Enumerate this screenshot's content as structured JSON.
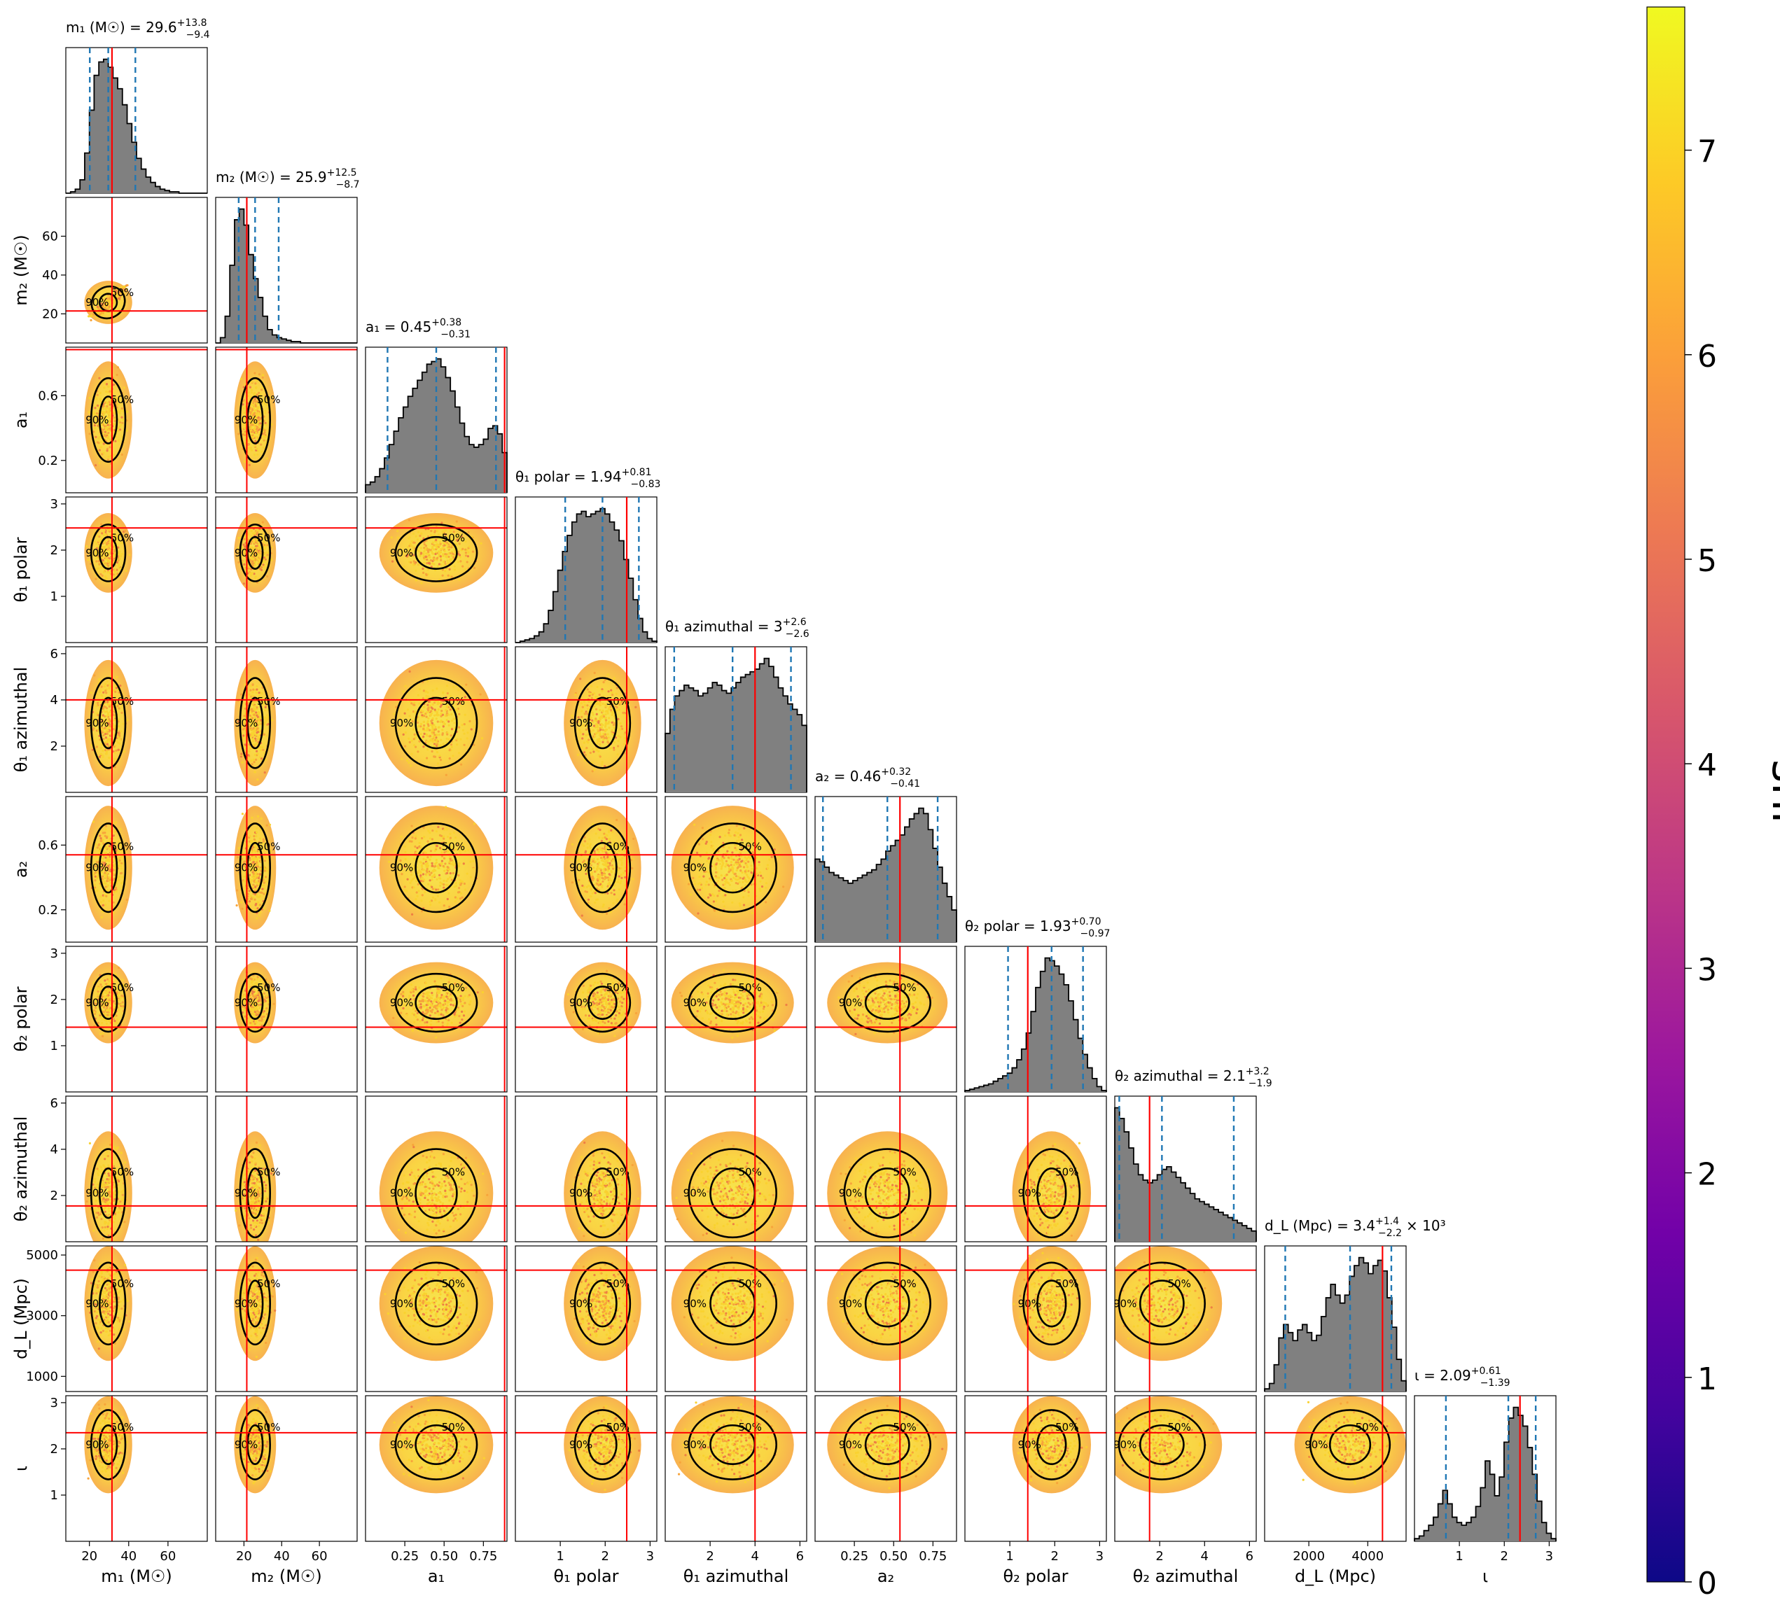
{
  "colors": {
    "hist_fill": "#808080",
    "truth_line": "#ff0000",
    "quantile_line": "#1f77b4",
    "contour": "#000000",
    "cmap": [
      "#0d0887",
      "#46039f",
      "#7201a8",
      "#9c179e",
      "#bd3786",
      "#d8576b",
      "#ed7953",
      "#fb9f3a",
      "#fdca26",
      "#f0f921"
    ]
  },
  "chart_data": {
    "type": "corner",
    "parameters": [
      {
        "key": "m1",
        "axis_label": "m₁ (M☉)",
        "title": "m₁ (M☉) = 29.6",
        "title_up": "+13.8",
        "title_down": "−9.4",
        "ticks": [
          "20",
          "40",
          "60"
        ],
        "tick_values": [
          20,
          40,
          60
        ],
        "range": [
          8,
          80
        ],
        "truth": 31.5,
        "q_low": 20.2,
        "median": 29.6,
        "q_high": 43.4
      },
      {
        "key": "m2",
        "axis_label": "m₂ (M☉)",
        "title": "m₂ (M☉) = 25.9",
        "title_up": "+12.5",
        "title_down": "−8.7",
        "ticks": [
          "20",
          "40",
          "60"
        ],
        "tick_values": [
          20,
          40,
          60
        ],
        "range": [
          5,
          80
        ],
        "truth": 21.5,
        "q_low": 17.2,
        "median": 25.9,
        "q_high": 38.4
      },
      {
        "key": "a1",
        "axis_label": "a₁",
        "title": "a₁ = 0.45",
        "title_up": "+0.38",
        "title_down": "−0.31",
        "ticks": [
          "0.25",
          "0.50",
          "0.75"
        ],
        "tick_values": [
          0.25,
          0.5,
          0.75
        ],
        "range": [
          0,
          0.9
        ],
        "truth": 0.885,
        "q_low": 0.14,
        "median": 0.45,
        "q_high": 0.83
      },
      {
        "key": "t1p",
        "axis_label": "θ₁ polar",
        "title": "θ₁ polar = 1.94",
        "title_up": "+0.81",
        "title_down": "−0.83",
        "ticks": [
          "1",
          "2",
          "3"
        ],
        "tick_values": [
          1,
          2,
          3
        ],
        "range": [
          0,
          3.15
        ],
        "truth": 2.48,
        "q_low": 1.11,
        "median": 1.94,
        "q_high": 2.75
      },
      {
        "key": "t1a",
        "axis_label": "θ₁ azimuthal",
        "title": "θ₁ azimuthal = 3",
        "title_up": "+2.6",
        "title_down": "−2.6",
        "ticks": [
          "2",
          "4",
          "6"
        ],
        "tick_values": [
          2,
          4,
          6
        ],
        "range": [
          0,
          6.3
        ],
        "truth": 4.0,
        "q_low": 0.4,
        "median": 3.0,
        "q_high": 5.6
      },
      {
        "key": "a2",
        "axis_label": "a₂",
        "title": "a₂ = 0.46",
        "title_up": "+0.32",
        "title_down": "−0.41",
        "ticks": [
          "0.25",
          "0.50",
          "0.75"
        ],
        "tick_values": [
          0.25,
          0.5,
          0.75
        ],
        "range": [
          0,
          0.9
        ],
        "truth": 0.54,
        "q_low": 0.05,
        "median": 0.46,
        "q_high": 0.78
      },
      {
        "key": "t2p",
        "axis_label": "θ₂ polar",
        "title": "θ₂ polar = 1.93",
        "title_up": "+0.70",
        "title_down": "−0.97",
        "ticks": [
          "1",
          "2",
          "3"
        ],
        "tick_values": [
          1,
          2,
          3
        ],
        "range": [
          0,
          3.15
        ],
        "truth": 1.4,
        "q_low": 0.96,
        "median": 1.93,
        "q_high": 2.63
      },
      {
        "key": "t2a",
        "axis_label": "θ₂ azimuthal",
        "title": "θ₂ azimuthal = 2.1",
        "title_up": "+3.2",
        "title_down": "−1.9",
        "ticks": [
          "2",
          "4",
          "6"
        ],
        "tick_values": [
          2,
          4,
          6
        ],
        "range": [
          0,
          6.3
        ],
        "truth": 1.55,
        "q_low": 0.2,
        "median": 2.1,
        "q_high": 5.3
      },
      {
        "key": "dl",
        "axis_label": "d_L (Mpc)",
        "title": "d_L (Mpc) = 3.4",
        "title_up": "+1.4",
        "title_down": "−2.2",
        "title_suffix": "× 10³",
        "ticks": [
          "2000",
          "4000"
        ],
        "tick_values": [
          2000,
          4000
        ],
        "range": [
          500,
          5300
        ],
        "truth": 4500,
        "q_low": 1200,
        "median": 3400,
        "q_high": 4800
      },
      {
        "key": "iota",
        "axis_label": "ι",
        "title": "ι = 2.09",
        "title_up": "+0.61",
        "title_down": "−1.39",
        "ticks": [
          "1",
          "2",
          "3"
        ],
        "tick_values": [
          1,
          2,
          3
        ],
        "range": [
          0,
          3.15
        ],
        "truth": 2.35,
        "q_low": 0.7,
        "median": 2.09,
        "q_high": 2.7
      }
    ],
    "row_ticks": {
      "m2": {
        "labels": [
          "20",
          "40",
          "60"
        ],
        "values": [
          20,
          40,
          60
        ]
      },
      "a1": {
        "labels": [
          "0.2",
          "0.6"
        ],
        "values": [
          0.2,
          0.6
        ]
      },
      "t1p": {
        "labels": [
          "1",
          "2",
          "3"
        ],
        "values": [
          1,
          2,
          3
        ]
      },
      "t1a": {
        "labels": [
          "2",
          "4",
          "6"
        ],
        "values": [
          2,
          4,
          6
        ]
      },
      "a2": {
        "labels": [
          "0.2",
          "0.6"
        ],
        "values": [
          0.2,
          0.6
        ]
      },
      "t2p": {
        "labels": [
          "1",
          "2",
          "3"
        ],
        "values": [
          1,
          2,
          3
        ]
      },
      "t2a": {
        "labels": [
          "2",
          "4",
          "6"
        ],
        "values": [
          2,
          4,
          6
        ]
      },
      "dl": {
        "labels": [
          "1000",
          "3000",
          "5000"
        ],
        "values": [
          1000,
          3000,
          5000
        ]
      },
      "iota": {
        "labels": [
          "1",
          "2",
          "3"
        ],
        "values": [
          1,
          2,
          3
        ]
      }
    },
    "histograms": {
      "m1": [
        0,
        1,
        3,
        10,
        30,
        62,
        88,
        98,
        100,
        94,
        86,
        78,
        66,
        52,
        38,
        26,
        18,
        12,
        8,
        5,
        3,
        2,
        1,
        1,
        0,
        0,
        0,
        0,
        0,
        0
      ],
      "m2": [
        0,
        4,
        20,
        58,
        92,
        100,
        88,
        66,
        48,
        34,
        20,
        10,
        6,
        4,
        3,
        2,
        1,
        1,
        0,
        0,
        0,
        0,
        0,
        0,
        0,
        0,
        0,
        0,
        0,
        0
      ],
      "a1": [
        6,
        8,
        12,
        18,
        26,
        36,
        46,
        56,
        64,
        72,
        78,
        84,
        90,
        96,
        98,
        100,
        94,
        86,
        76,
        64,
        52,
        42,
        36,
        34,
        36,
        40,
        48,
        50,
        44,
        30
      ],
      "t1p": [
        0,
        1,
        2,
        3,
        5,
        8,
        14,
        24,
        38,
        54,
        68,
        80,
        90,
        96,
        98,
        94,
        96,
        98,
        100,
        96,
        90,
        84,
        76,
        62,
        48,
        32,
        18,
        8,
        3,
        1
      ],
      "t1a": [
        44,
        62,
        72,
        76,
        80,
        78,
        76,
        72,
        74,
        78,
        82,
        80,
        76,
        74,
        78,
        82,
        86,
        88,
        90,
        92,
        96,
        100,
        94,
        86,
        78,
        72,
        66,
        62,
        58,
        50
      ],
      "a2": [
        62,
        60,
        56,
        52,
        50,
        48,
        46,
        44,
        46,
        48,
        50,
        52,
        54,
        58,
        62,
        68,
        72,
        76,
        80,
        86,
        92,
        96,
        100,
        96,
        84,
        70,
        56,
        44,
        34,
        24
      ],
      "t2p": [
        1,
        2,
        3,
        4,
        5,
        6,
        8,
        10,
        12,
        14,
        18,
        24,
        32,
        44,
        60,
        78,
        90,
        100,
        98,
        94,
        88,
        80,
        68,
        54,
        40,
        28,
        18,
        10,
        4,
        1
      ],
      "t2a": [
        100,
        92,
        82,
        70,
        58,
        50,
        46,
        44,
        46,
        50,
        54,
        56,
        52,
        48,
        44,
        40,
        36,
        32,
        30,
        28,
        26,
        24,
        22,
        20,
        18,
        16,
        14,
        12,
        10,
        8
      ],
      "dl": [
        2,
        6,
        20,
        40,
        50,
        44,
        38,
        46,
        50,
        44,
        38,
        42,
        56,
        70,
        80,
        72,
        66,
        72,
        86,
        94,
        100,
        96,
        88,
        94,
        98,
        90,
        70,
        48,
        24,
        8
      ],
      "iota": [
        2,
        4,
        8,
        12,
        18,
        28,
        38,
        28,
        18,
        14,
        12,
        14,
        18,
        26,
        40,
        60,
        50,
        34,
        48,
        74,
        92,
        100,
        94,
        86,
        70,
        50,
        30,
        14,
        6,
        2
      ]
    },
    "contour_levels": [
      "50%",
      "90%"
    ],
    "colorbar": {
      "label": "snr",
      "ticks": [
        "0",
        "1",
        "2",
        "3",
        "4",
        "5",
        "6",
        "7"
      ],
      "range": [
        0,
        7.7
      ]
    }
  }
}
